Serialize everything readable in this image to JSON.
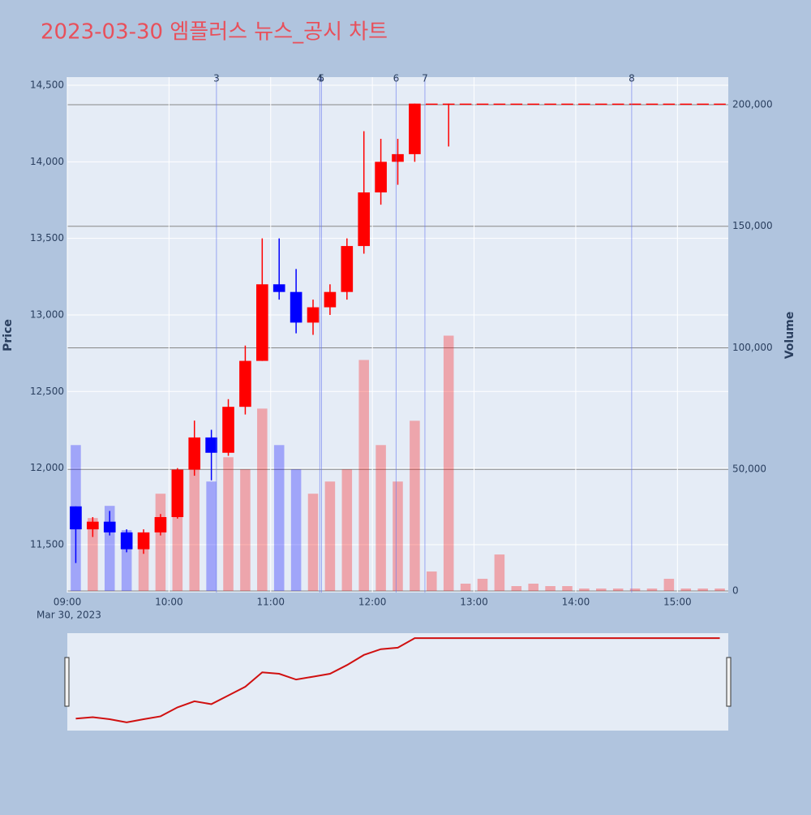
{
  "chart_data": {
    "type": "candlestick",
    "title": "2023-03-30 엠플러스 뉴스_공시 차트",
    "y_label": "Price",
    "y2_label": "Volume",
    "date_label": "Mar 30, 2023",
    "x": [
      "09:00",
      "09:10",
      "09:20",
      "09:30",
      "09:40",
      "09:50",
      "10:00",
      "10:10",
      "10:20",
      "10:30",
      "10:40",
      "10:50",
      "11:00",
      "11:10",
      "11:20",
      "11:30",
      "11:40",
      "11:50",
      "12:00",
      "12:10",
      "12:20",
      "12:30",
      "12:40",
      "12:50",
      "13:00",
      "13:10",
      "13:20",
      "13:30",
      "13:40",
      "13:50",
      "14:00",
      "14:10",
      "14:20",
      "14:30",
      "14:40",
      "14:50",
      "15:00",
      "15:10",
      "15:20"
    ],
    "open": [
      11750,
      11600,
      11650,
      11580,
      11470,
      11580,
      11680,
      11990,
      12200,
      12100,
      12400,
      12700,
      13200,
      13150,
      12950,
      13050,
      13150,
      13450,
      13800,
      14000,
      14050,
      14380,
      14380,
      14380,
      14380,
      14380,
      14380,
      14380,
      14380,
      14380,
      14380,
      14380,
      14380,
      14380,
      14380,
      14380,
      14380,
      14380,
      14380
    ],
    "high": [
      11750,
      11680,
      11720,
      11600,
      11600,
      11700,
      12000,
      12310,
      12250,
      12450,
      12800,
      13500,
      13500,
      13300,
      13100,
      13200,
      13500,
      14200,
      14150,
      14150,
      14380,
      14380,
      14380,
      14380,
      14380,
      14380,
      14380,
      14380,
      14380,
      14380,
      14380,
      14380,
      14380,
      14380,
      14380,
      14380,
      14380,
      14380,
      14380
    ],
    "low": [
      11380,
      11550,
      11560,
      11450,
      11440,
      11560,
      11670,
      11950,
      11920,
      12080,
      12350,
      12700,
      13100,
      12880,
      12870,
      13000,
      13100,
      13400,
      13720,
      13850,
      14000,
      14380,
      14100,
      14380,
      14380,
      14380,
      14380,
      14380,
      14380,
      14380,
      14380,
      14380,
      14380,
      14380,
      14380,
      14380,
      14380,
      14380,
      14380
    ],
    "close": [
      11600,
      11650,
      11580,
      11470,
      11580,
      11680,
      11990,
      12200,
      12100,
      12400,
      12700,
      13200,
      13150,
      12950,
      13050,
      13150,
      13450,
      13800,
      14000,
      14050,
      14380,
      14380,
      14380,
      14380,
      14380,
      14380,
      14380,
      14380,
      14380,
      14380,
      14380,
      14380,
      14380,
      14380,
      14380,
      14380,
      14380,
      14380,
      14380
    ],
    "volume": [
      60000,
      30000,
      35000,
      25000,
      20000,
      40000,
      45000,
      50000,
      45000,
      55000,
      50000,
      75000,
      60000,
      50000,
      40000,
      45000,
      50000,
      95000,
      60000,
      45000,
      70000,
      8000,
      105000,
      3000,
      5000,
      15000,
      2000,
      3000,
      2000,
      2000,
      1000,
      1000,
      1000,
      1000,
      1000,
      5000,
      1000,
      1000,
      1000
    ],
    "increasing_color": "#ff0000",
    "decreasing_color": "#0000ff",
    "xlim": [
      "09:00",
      "15:30"
    ],
    "xticks": [
      "09:00",
      "10:00",
      "11:00",
      "12:00",
      "13:00",
      "14:00",
      "15:00"
    ],
    "ylim": [
      11187,
      14553
    ],
    "yticks": [
      {
        "value": 11500,
        "label": "11,500"
      },
      {
        "value": 12000,
        "label": "12,000"
      },
      {
        "value": 12500,
        "label": "12,500"
      },
      {
        "value": 13000,
        "label": "13,000"
      },
      {
        "value": 13500,
        "label": "13,500"
      },
      {
        "value": 14000,
        "label": "14,000"
      },
      {
        "value": 14500,
        "label": "14,500"
      }
    ],
    "y2lim": [
      -667,
      211333
    ],
    "y2ticks": [
      0,
      {
        "value": 50000,
        "label": "50,000"
      },
      {
        "value": 100000,
        "label": "100,000"
      },
      {
        "value": 150000,
        "label": "150,000"
      },
      {
        "value": 200000,
        "label": "200,000"
      }
    ],
    "news": [
      {
        "label": "3",
        "time": "10:28"
      },
      {
        "label": "4",
        "time": "11:29"
      },
      {
        "label": "5",
        "time": "11:30"
      },
      {
        "label": "6",
        "time": "12:14"
      },
      {
        "label": "7",
        "time": "12:31"
      },
      {
        "label": "8",
        "time": "14:33"
      }
    ]
  }
}
